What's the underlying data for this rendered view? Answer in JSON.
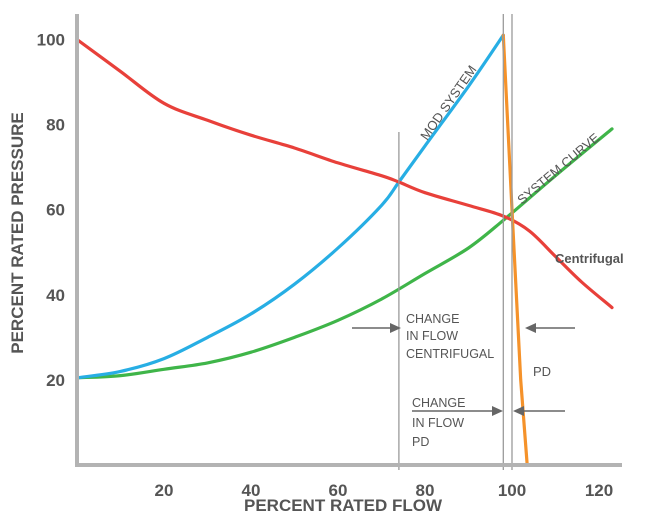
{
  "chart_data": {
    "type": "line",
    "xlabel": "PERCENT RATED FLOW",
    "ylabel": "PERCENT RATED PRESSURE",
    "xlim": [
      0,
      123
    ],
    "ylim": [
      0,
      108
    ],
    "x_ticks": [
      "20",
      "40",
      "60",
      "80",
      "100",
      "120"
    ],
    "y_ticks": [
      "20",
      "40",
      "60",
      "80",
      "100"
    ],
    "grid": false,
    "series": [
      {
        "name": "Centrifugal",
        "color": "#e8403a",
        "x": [
          0,
          10,
          20,
          30,
          40,
          50,
          60,
          70,
          74,
          80,
          90,
          98,
          104,
          110,
          116,
          123
        ],
        "y": [
          100,
          92.5,
          85,
          81,
          77.5,
          74.5,
          71,
          68,
          66.5,
          64,
          61,
          58.5,
          55,
          49,
          43,
          37
        ]
      },
      {
        "name": "MOD SYSTEM",
        "color": "#27aee4",
        "x": [
          0,
          10,
          20,
          30,
          40,
          50,
          60,
          70,
          74,
          80,
          90,
          98
        ],
        "y": [
          20.5,
          22,
          25,
          30,
          35.5,
          42.5,
          51,
          61,
          66.5,
          75,
          89,
          101
        ]
      },
      {
        "name": "SYSTEM CURVE",
        "color": "#3fb549",
        "x": [
          0,
          10,
          20,
          30,
          40,
          50,
          60,
          70,
          80,
          90,
          98,
          110,
          123
        ],
        "y": [
          20.5,
          21,
          22.5,
          24,
          26.5,
          30,
          34,
          39,
          45,
          51,
          57.5,
          68,
          79
        ]
      },
      {
        "name": "PD",
        "color": "#f5922a",
        "x": [
          98,
          100,
          102,
          103.5
        ],
        "y": [
          101,
          60,
          20,
          0
        ]
      }
    ],
    "annotations": {
      "change_centrifugal": [
        "CHANGE",
        "IN FLOW",
        "CENTRIFUGAL"
      ],
      "change_pd": [
        "CHANGE",
        "IN FLOW",
        "PD"
      ],
      "vlines": [
        74,
        98,
        100
      ]
    }
  }
}
